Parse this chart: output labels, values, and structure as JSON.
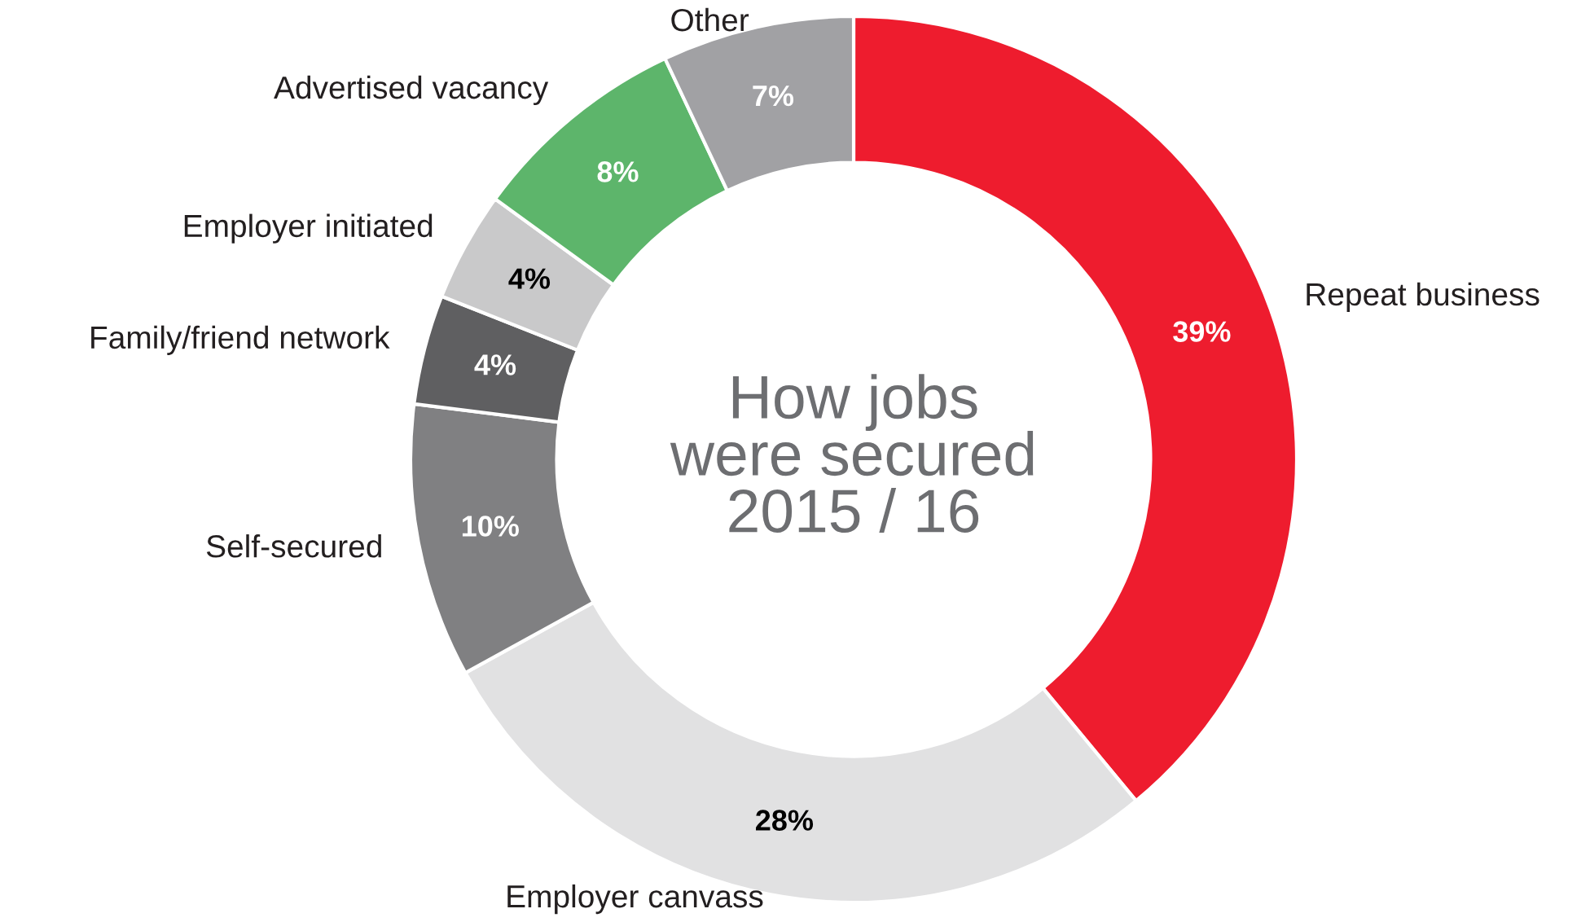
{
  "chart_data": {
    "type": "donut",
    "title": "How jobs\nwere secured\n2015 / 16",
    "categories": [
      "Repeat business",
      "Employer canvass",
      "Self-secured",
      "Family/friend network",
      "Employer initiated",
      "Advertised vacancy",
      "Other"
    ],
    "values": [
      39,
      28,
      10,
      4,
      4,
      8,
      7
    ],
    "value_labels": [
      "39%",
      "28%",
      "10%",
      "4%",
      "4%",
      "8%",
      "7%"
    ],
    "colors": [
      "#ee1c2e",
      "#e1e1e2",
      "#808082",
      "#5f5f61",
      "#c9c9ca",
      "#5db56b",
      "#a1a1a4"
    ],
    "legend": false
  }
}
